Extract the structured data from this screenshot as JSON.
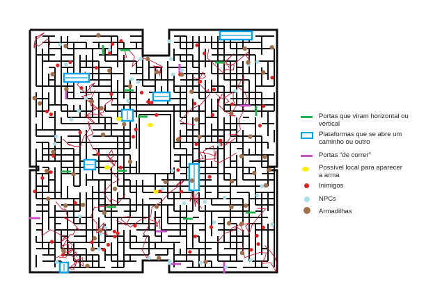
{
  "colors": {
    "wall": "#111111",
    "path": "#c8102e",
    "door_green": "#22b14c",
    "platform_blue": "#00a2e8",
    "door_purple": "#c84fc8",
    "weapon_yellow": "#ffee00",
    "enemy_red": "#e81c1c",
    "npc_cyan": "#a8dde8",
    "trap_brown": "#a0704a"
  },
  "legend": {
    "items": [
      {
        "icon": "green-door-line-icon",
        "label": "Portas que viram horizontal ou vertical"
      },
      {
        "icon": "blue-platform-rect-icon",
        "label": "Plataformas que se abre um caminho ou outro"
      },
      {
        "icon": "purple-door-line-icon",
        "label": "Portas \"de correr\""
      },
      {
        "icon": "yellow-dot-icon",
        "label": "Possível local para aparecer a arma"
      },
      {
        "icon": "red-dot-icon",
        "label": "Inimigos"
      },
      {
        "icon": "cyan-dot-icon",
        "label": "NPCs"
      },
      {
        "icon": "brown-dot-icon",
        "label": "Armadilhas"
      }
    ]
  }
}
